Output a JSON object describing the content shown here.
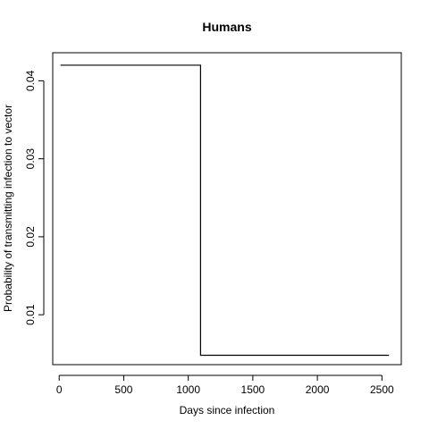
{
  "chart_data": {
    "type": "line",
    "title": "Humans",
    "xlabel": "Days since infection",
    "ylabel": "Probability of transmitting infection to vector",
    "xlim": [
      -50,
      2650
    ],
    "ylim": [
      0.0036,
      0.0436
    ],
    "xticks": [
      0,
      500,
      1000,
      1500,
      2000,
      2500
    ],
    "yticks": [
      0.01,
      0.02,
      0.03,
      0.04
    ],
    "xtick_labels": [
      "0",
      "500",
      "1000",
      "1500",
      "2000",
      "2500"
    ],
    "ytick_labels": [
      "0.01",
      "0.02",
      "0.03",
      "0.04"
    ],
    "grid": false,
    "series": [
      {
        "x": [
          10,
          1095,
          1095,
          2555
        ],
        "y": [
          0.042,
          0.042,
          0.0048,
          0.0048
        ]
      }
    ]
  }
}
